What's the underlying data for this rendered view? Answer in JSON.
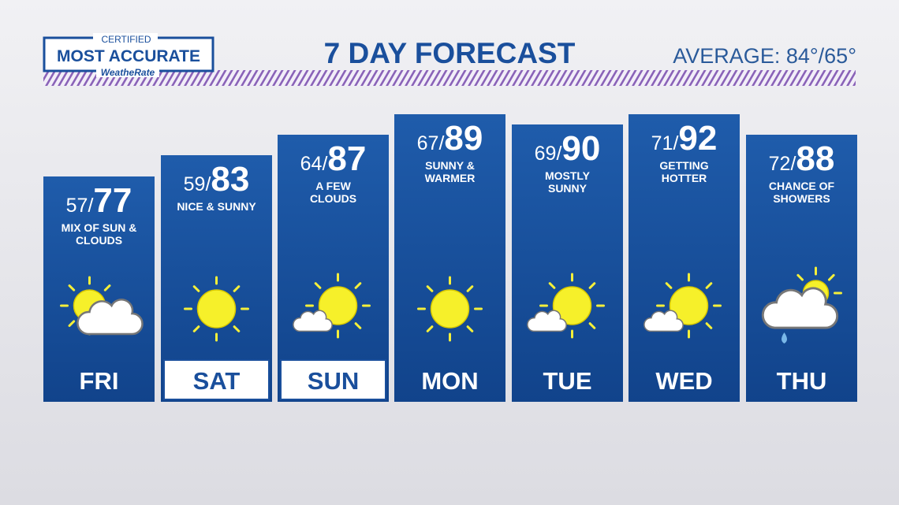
{
  "logo": {
    "top": "CERTIFIED",
    "main": "MOST ACCURATE",
    "bottom": "WeatheRate"
  },
  "header": {
    "title": "7 DAY FORECAST",
    "average": "AVERAGE: 84°/65°"
  },
  "days": [
    {
      "day": "FRI",
      "low": 57,
      "high": 77,
      "description": [
        "MIX OF SUN &",
        "CLOUDS"
      ]
    },
    {
      "day": "SAT",
      "low": 59,
      "high": 83,
      "description": [
        "NICE & SUNNY"
      ]
    },
    {
      "day": "SUN",
      "low": 64,
      "high": 87,
      "description": [
        "A FEW",
        "CLOUDS"
      ]
    },
    {
      "day": "MON",
      "low": 67,
      "high": 89,
      "description": [
        "SUNNY &",
        "WARMER"
      ]
    },
    {
      "day": "TUE",
      "low": 69,
      "high": 90,
      "description": [
        "MOSTLY",
        "SUNNY"
      ]
    },
    {
      "day": "WED",
      "low": 71,
      "high": 92,
      "description": [
        "GETTING",
        "HOTTER"
      ]
    },
    {
      "day": "THU",
      "low": 72,
      "high": 88,
      "description": [
        "CHANCE OF",
        "SHOWERS"
      ]
    }
  ]
}
